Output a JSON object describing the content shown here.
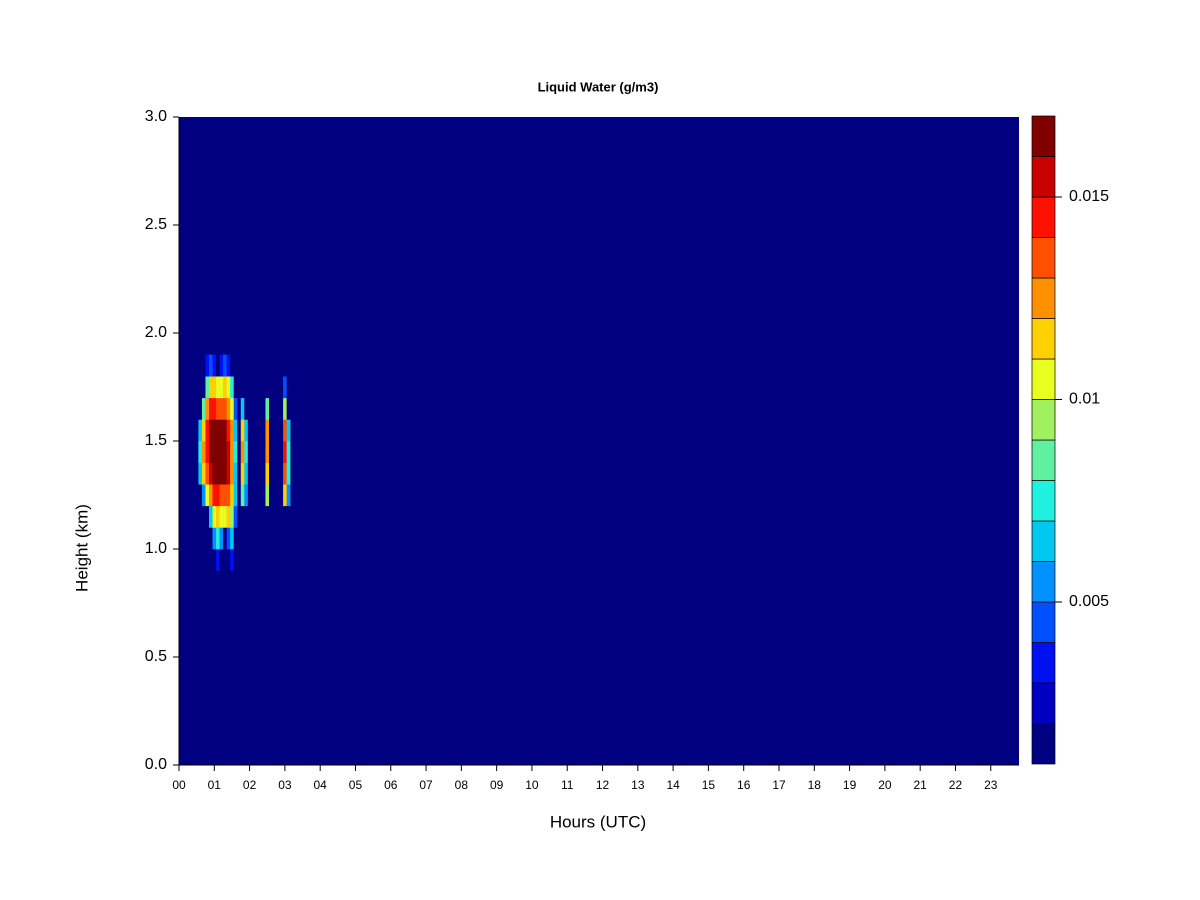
{
  "chart_data": {
    "type": "heatmap",
    "title": "Liquid Water (g/m3)",
    "xlabel": "Hours (UTC)",
    "ylabel": "Height (km)",
    "xlim": [
      0,
      23.8
    ],
    "ylim": [
      0,
      3
    ],
    "xticks": [
      {
        "value": 0,
        "label": "00"
      },
      {
        "value": 1,
        "label": "01"
      },
      {
        "value": 2,
        "label": "02"
      },
      {
        "value": 3,
        "label": "03"
      },
      {
        "value": 4,
        "label": "04"
      },
      {
        "value": 5,
        "label": "05"
      },
      {
        "value": 6,
        "label": "06"
      },
      {
        "value": 7,
        "label": "07"
      },
      {
        "value": 8,
        "label": "08"
      },
      {
        "value": 9,
        "label": "09"
      },
      {
        "value": 10,
        "label": "10"
      },
      {
        "value": 11,
        "label": "11"
      },
      {
        "value": 12,
        "label": "12"
      },
      {
        "value": 13,
        "label": "13"
      },
      {
        "value": 14,
        "label": "14"
      },
      {
        "value": 15,
        "label": "15"
      },
      {
        "value": 16,
        "label": "16"
      },
      {
        "value": 17,
        "label": "17"
      },
      {
        "value": 18,
        "label": "18"
      },
      {
        "value": 19,
        "label": "19"
      },
      {
        "value": 20,
        "label": "20"
      },
      {
        "value": 21,
        "label": "21"
      },
      {
        "value": 22,
        "label": "22"
      },
      {
        "value": 23,
        "label": "23"
      }
    ],
    "yticks": [
      {
        "value": 0,
        "label": "0.0"
      },
      {
        "value": 0.5,
        "label": "0.5"
      },
      {
        "value": 1,
        "label": "1.0"
      },
      {
        "value": 1.5,
        "label": "1.5"
      },
      {
        "value": 2,
        "label": "2.0"
      },
      {
        "value": 2.5,
        "label": "2.5"
      },
      {
        "value": 3,
        "label": "3.0"
      }
    ],
    "x": [
      0.6,
      0.7,
      0.8,
      0.9,
      1.0,
      1.1,
      1.2,
      1.3,
      1.4,
      1.5,
      1.6,
      1.7,
      1.8,
      1.9,
      2.0,
      2.1,
      2.2,
      2.3,
      2.4,
      2.5,
      2.6,
      2.7,
      2.8,
      2.9,
      3.0,
      3.1
    ],
    "y": [
      0.95,
      1.05,
      1.15,
      1.25,
      1.35,
      1.45,
      1.55,
      1.65,
      1.75,
      1.85
    ],
    "cell_width": 0.1,
    "cell_height": 0.1,
    "z": [
      [
        0,
        0,
        0,
        0,
        0,
        0.003,
        0,
        0,
        0,
        0.003,
        0,
        0,
        0,
        0,
        0,
        0,
        0,
        0,
        0,
        0,
        0,
        0,
        0,
        0,
        0,
        0
      ],
      [
        0,
        0,
        0,
        0,
        0.005,
        0.007,
        0.005,
        0,
        0.004,
        0.006,
        0,
        0,
        0,
        0,
        0,
        0,
        0,
        0,
        0,
        0,
        0,
        0,
        0,
        0,
        0,
        0
      ],
      [
        0,
        0,
        0,
        0.006,
        0.01,
        0.011,
        0.01,
        0.01,
        0.011,
        0.009,
        0.004,
        0,
        0,
        0,
        0,
        0,
        0,
        0,
        0,
        0,
        0,
        0,
        0,
        0,
        0,
        0
      ],
      [
        0,
        0.005,
        0.01,
        0.012,
        0.014,
        0.014,
        0.013,
        0.013,
        0.013,
        0.011,
        0.006,
        0,
        0.008,
        0.005,
        0,
        0,
        0,
        0,
        0,
        0.009,
        0,
        0,
        0,
        0,
        0.011,
        0.005
      ],
      [
        0.006,
        0.011,
        0.013,
        0.015,
        0.016,
        0.016,
        0.016,
        0.016,
        0.015,
        0.012,
        0.006,
        0,
        0.011,
        0.006,
        0,
        0,
        0,
        0,
        0,
        0.011,
        0,
        0,
        0,
        0,
        0.013,
        0.007
      ],
      [
        0.007,
        0.012,
        0.014,
        0.016,
        0.017,
        0.017,
        0.017,
        0.016,
        0.015,
        0.012,
        0.007,
        0,
        0.012,
        0.007,
        0,
        0,
        0,
        0,
        0,
        0.012,
        0,
        0,
        0,
        0,
        0.014,
        0.007
      ],
      [
        0.006,
        0.011,
        0.014,
        0.016,
        0.016,
        0.016,
        0.016,
        0.016,
        0.014,
        0.012,
        0.006,
        0,
        0.011,
        0.006,
        0,
        0,
        0,
        0,
        0,
        0.012,
        0,
        0,
        0,
        0,
        0.013,
        0.006
      ],
      [
        0,
        0.008,
        0.012,
        0.014,
        0.014,
        0.013,
        0.013,
        0.013,
        0.012,
        0.01,
        0.004,
        0,
        0.006,
        0,
        0,
        0,
        0,
        0,
        0,
        0.008,
        0,
        0,
        0,
        0,
        0.009,
        0
      ],
      [
        0,
        0,
        0.008,
        0.011,
        0.011,
        0.01,
        0.01,
        0.011,
        0.01,
        0.007,
        0,
        0,
        0,
        0,
        0,
        0,
        0,
        0,
        0,
        0,
        0,
        0,
        0,
        0,
        0.004,
        0
      ],
      [
        0,
        0,
        0.003,
        0.004,
        0.003,
        0,
        0.003,
        0.004,
        0.003,
        0,
        0,
        0,
        0,
        0,
        0,
        0,
        0,
        0,
        0,
        0,
        0,
        0,
        0,
        0,
        0,
        0
      ]
    ],
    "levels": [
      0.001,
      0.002,
      0.003,
      0.004,
      0.005,
      0.006,
      0.007,
      0.008,
      0.009,
      0.01,
      0.011,
      0.012,
      0.013,
      0.014,
      0.015,
      0.016,
      0.017
    ],
    "colors": [
      "#000080",
      "#0000c0",
      "#0010f0",
      "#0050ff",
      "#0090ff",
      "#00c8f0",
      "#20f0e0",
      "#60f0a0",
      "#a0f060",
      "#e8ff20",
      "#ffd000",
      "#ff9000",
      "#ff5000",
      "#ff1000",
      "#c80000",
      "#800000"
    ],
    "colorbar_ticks": [
      0.005,
      0.01,
      0.015
    ]
  }
}
